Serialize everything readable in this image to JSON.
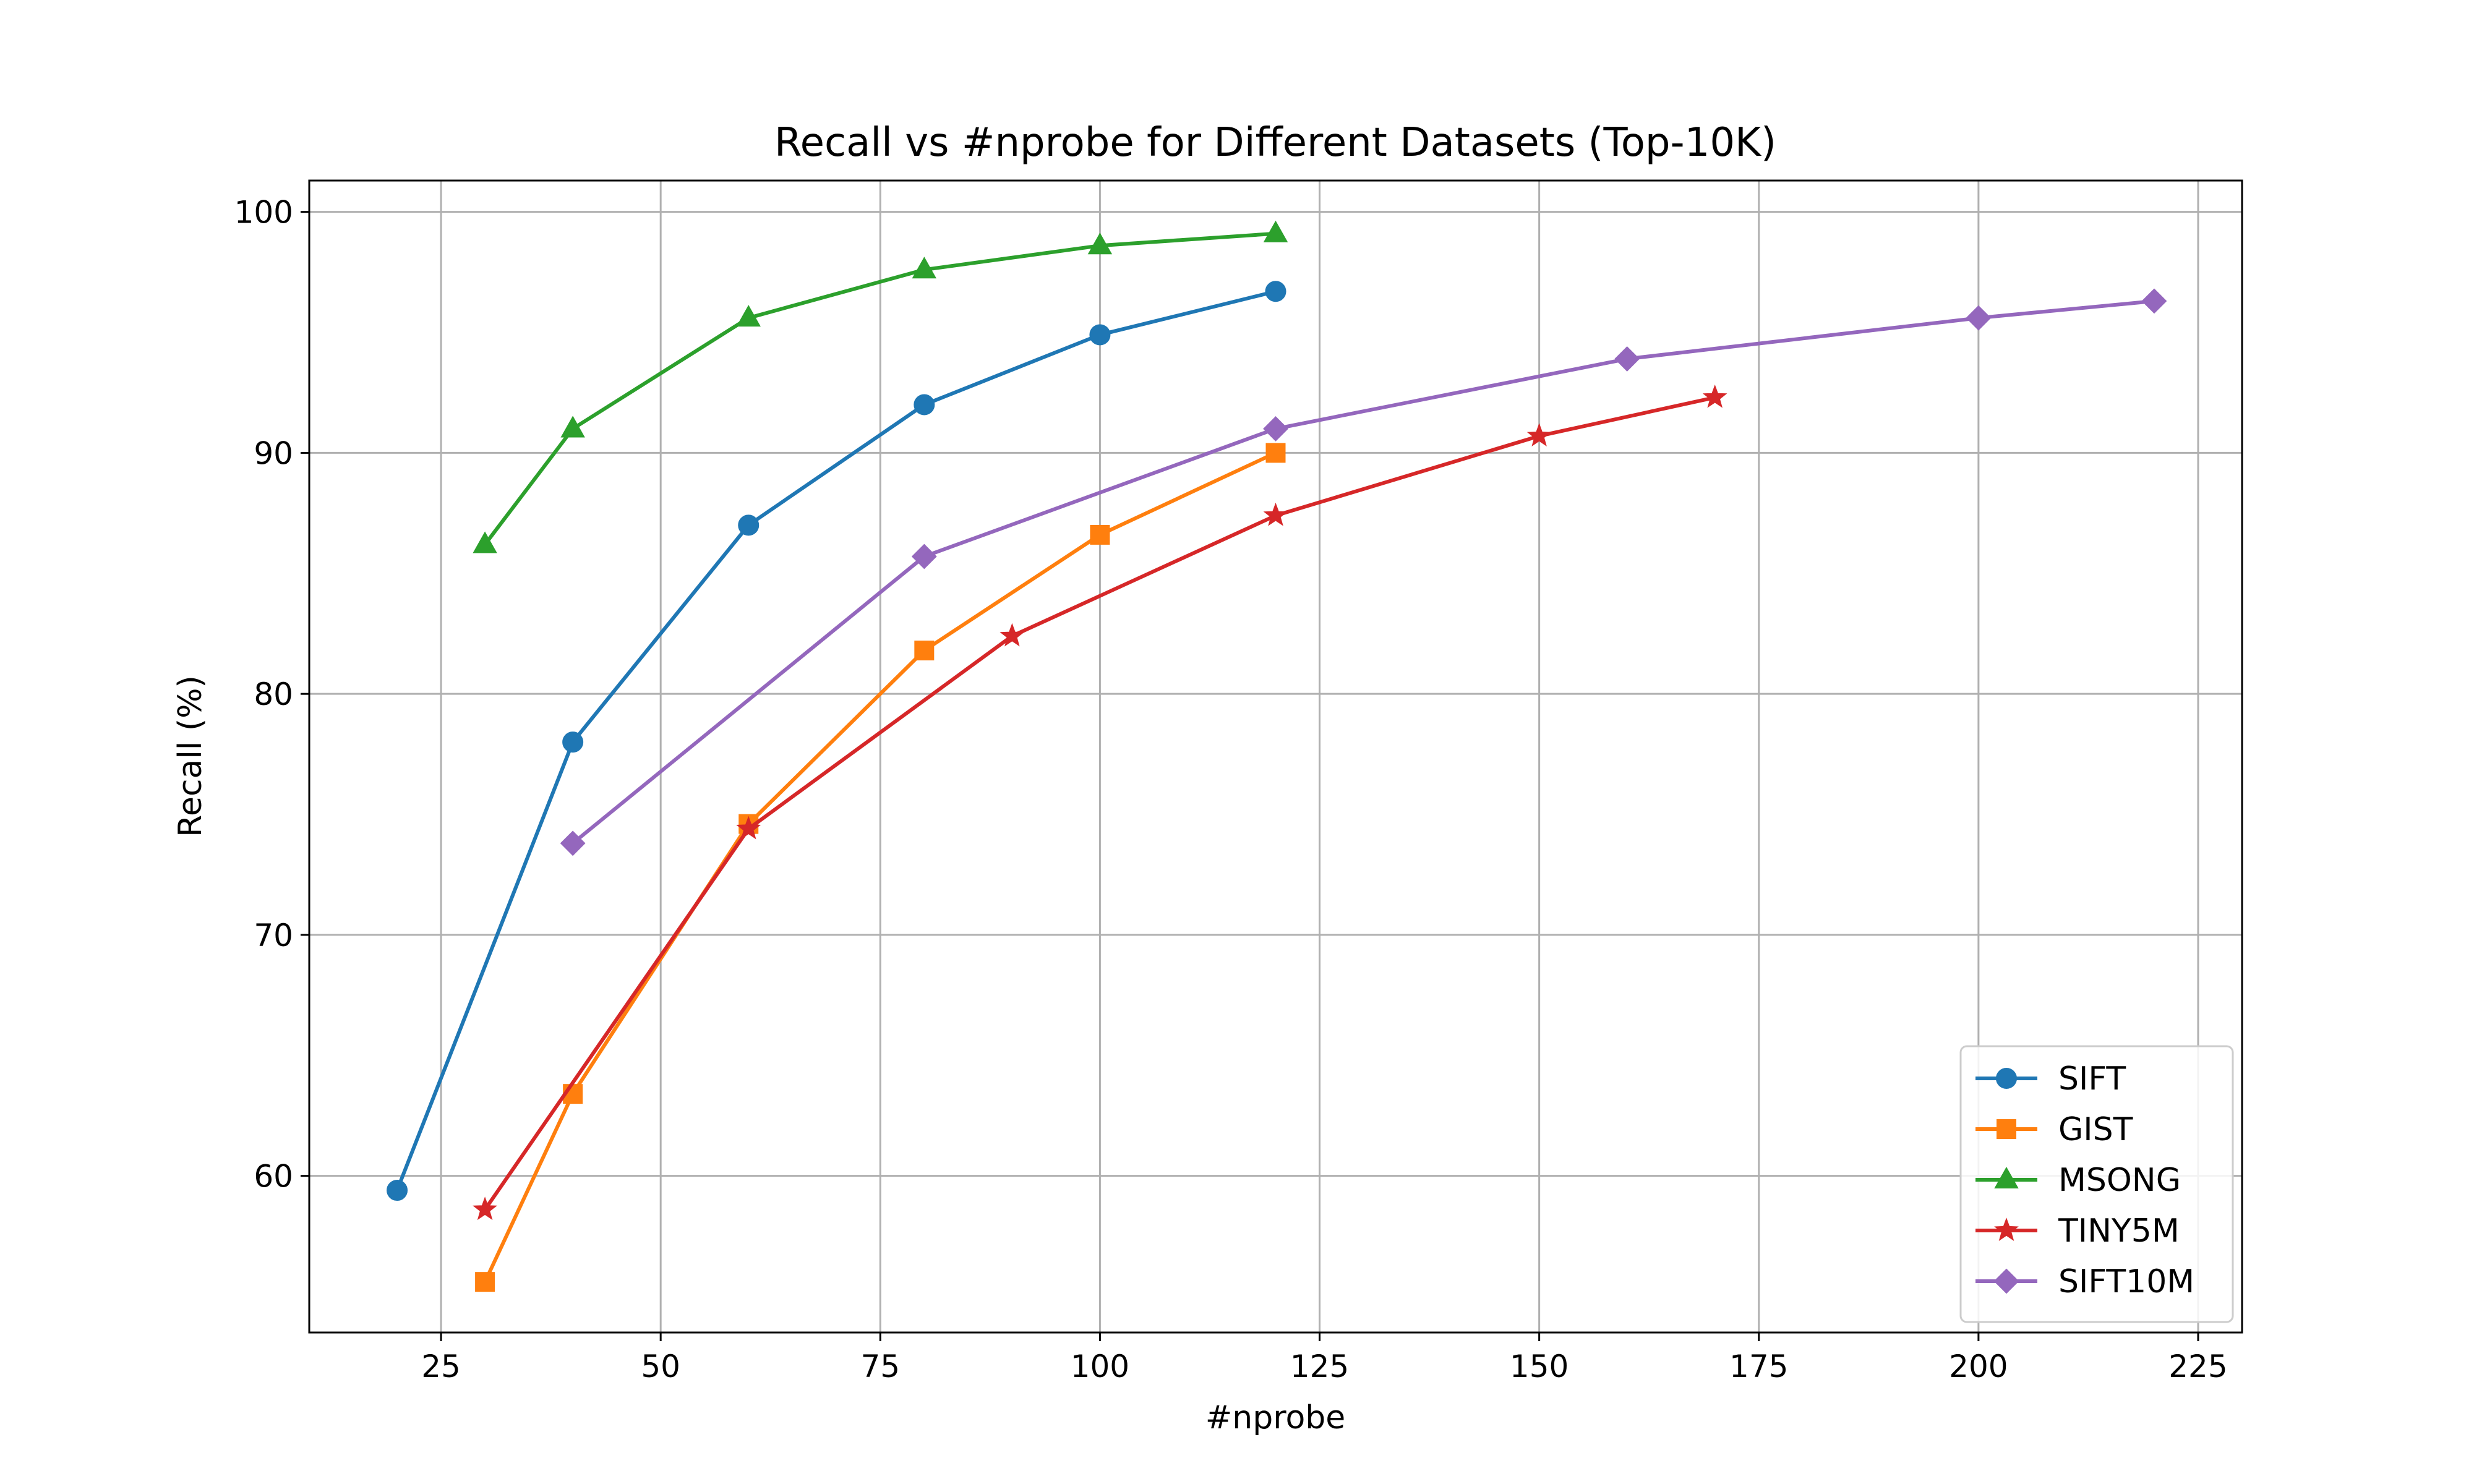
{
  "chart_data": {
    "type": "line",
    "title": "Recall vs #nprobe for Different Datasets (Top-10K)",
    "xlabel": "#nprobe",
    "ylabel": "Recall (%)",
    "xlim": [
      10,
      230
    ],
    "ylim": [
      53.5,
      101.3
    ],
    "xticks": [
      25,
      50,
      75,
      100,
      125,
      150,
      175,
      200,
      225
    ],
    "yticks": [
      60,
      70,
      80,
      90,
      100
    ],
    "grid": true,
    "legend_position": "lower-right",
    "series": [
      {
        "name": "SIFT",
        "color": "#1f77b4",
        "marker": "circle",
        "x": [
          20,
          40,
          60,
          80,
          100,
          120
        ],
        "y": [
          59.4,
          78.0,
          87.0,
          92.0,
          94.9,
          96.7
        ]
      },
      {
        "name": "GIST",
        "color": "#ff7f0e",
        "marker": "square",
        "x": [
          30,
          40,
          60,
          80,
          100,
          120
        ],
        "y": [
          55.6,
          63.4,
          74.6,
          81.8,
          86.6,
          90.0
        ]
      },
      {
        "name": "MSONG",
        "color": "#2ca02c",
        "marker": "triangle",
        "x": [
          30,
          40,
          60,
          80,
          100,
          120
        ],
        "y": [
          86.2,
          91.0,
          95.6,
          97.6,
          98.6,
          99.1
        ]
      },
      {
        "name": "TINY5M",
        "color": "#d62728",
        "marker": "star",
        "x": [
          30,
          60,
          90,
          120,
          150,
          170
        ],
        "y": [
          58.6,
          74.4,
          82.4,
          87.4,
          90.7,
          92.3
        ]
      },
      {
        "name": "SIFT10M",
        "color": "#9467bd",
        "marker": "diamond",
        "x": [
          40,
          80,
          120,
          160,
          200,
          220
        ],
        "y": [
          73.8,
          85.7,
          91.0,
          93.9,
          95.6,
          96.3
        ]
      }
    ]
  }
}
